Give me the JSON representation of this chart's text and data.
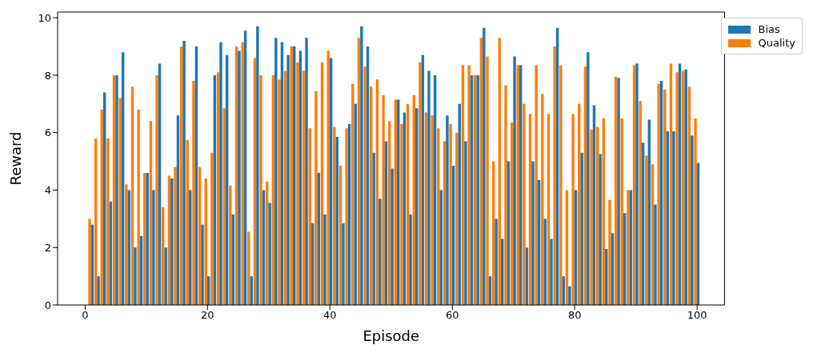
{
  "chart_data": {
    "type": "bar",
    "xlabel": "Episode",
    "ylabel": "Reward",
    "x": [
      1,
      2,
      3,
      4,
      5,
      6,
      7,
      8,
      9,
      10,
      11,
      12,
      13,
      14,
      15,
      16,
      17,
      18,
      19,
      20,
      21,
      22,
      23,
      24,
      25,
      26,
      27,
      28,
      29,
      30,
      31,
      32,
      33,
      34,
      35,
      36,
      37,
      38,
      39,
      40,
      41,
      42,
      43,
      44,
      45,
      46,
      47,
      48,
      49,
      50,
      51,
      52,
      53,
      54,
      55,
      56,
      57,
      58,
      59,
      60,
      61,
      62,
      63,
      64,
      65,
      66,
      67,
      68,
      69,
      70,
      71,
      72,
      73,
      74,
      75,
      76,
      77,
      78,
      79,
      80,
      81,
      82,
      83,
      84,
      85,
      86,
      87,
      88,
      89,
      90,
      91,
      92,
      93,
      94,
      95,
      96,
      97,
      98,
      99,
      100
    ],
    "series": [
      {
        "name": "Bias",
        "color": "#1f77b4",
        "values": [
          2.8,
          1.0,
          7.4,
          3.6,
          8.0,
          8.8,
          4.0,
          2.0,
          2.4,
          4.6,
          4.0,
          8.4,
          2.0,
          4.4,
          6.6,
          9.2,
          4.0,
          9.0,
          2.8,
          1.0,
          8.0,
          9.15,
          8.7,
          3.15,
          8.85,
          9.55,
          1.0,
          9.7,
          4.0,
          3.55,
          9.3,
          9.15,
          8.7,
          9.0,
          8.85,
          9.3,
          2.85,
          4.6,
          3.15,
          8.6,
          5.85,
          2.85,
          6.3,
          7.0,
          9.7,
          9.0,
          5.3,
          3.7,
          5.7,
          4.75,
          7.15,
          6.7,
          3.15,
          6.85,
          8.7,
          8.15,
          8.0,
          4.0,
          6.6,
          4.85,
          7.0,
          5.7,
          8.0,
          8.0,
          9.65,
          1.0,
          3.0,
          2.3,
          5.0,
          8.65,
          8.35,
          2.0,
          5.0,
          4.35,
          3.0,
          2.3,
          9.65,
          1.0,
          0.65,
          4.0,
          5.3,
          8.8,
          6.95,
          5.25,
          1.95,
          2.5,
          7.9,
          3.2,
          4.0,
          8.4,
          5.65,
          6.45,
          3.5,
          7.8,
          6.05,
          6.05,
          8.4,
          8.2,
          5.9,
          4.95
        ]
      },
      {
        "name": "Quality",
        "color": "#ff7f0e",
        "values": [
          3.0,
          5.8,
          6.8,
          5.8,
          8.0,
          7.2,
          4.2,
          7.6,
          6.8,
          4.6,
          6.4,
          8.0,
          3.4,
          4.5,
          4.8,
          9.0,
          5.75,
          7.8,
          4.8,
          4.4,
          5.3,
          8.1,
          6.85,
          4.15,
          9.0,
          9.15,
          2.55,
          8.6,
          8.0,
          4.3,
          8.0,
          7.85,
          8.15,
          9.0,
          8.45,
          8.15,
          6.15,
          7.45,
          8.45,
          8.85,
          6.2,
          4.85,
          6.15,
          7.7,
          9.3,
          8.3,
          7.6,
          7.85,
          7.3,
          6.4,
          7.15,
          6.3,
          7.0,
          7.3,
          8.45,
          6.7,
          6.6,
          6.15,
          5.7,
          6.3,
          6.0,
          8.35,
          8.35,
          8.0,
          9.3,
          8.65,
          5.0,
          9.3,
          7.65,
          6.35,
          8.35,
          7.0,
          6.65,
          8.35,
          7.35,
          6.65,
          9.0,
          8.35,
          4.0,
          6.65,
          7.0,
          8.3,
          6.1,
          6.2,
          6.5,
          3.65,
          7.95,
          6.5,
          4.0,
          8.35,
          7.1,
          5.2,
          4.9,
          7.7,
          7.5,
          8.4,
          8.1,
          8.15,
          7.6,
          6.5
        ]
      }
    ],
    "xlim": [
      -4.5,
      104.5
    ],
    "xticks": [
      0,
      20,
      40,
      60,
      80,
      100
    ],
    "ylim": [
      0,
      10.2
    ],
    "yticks": [
      0,
      2,
      4,
      6,
      8,
      10
    ],
    "legend": "top right"
  }
}
